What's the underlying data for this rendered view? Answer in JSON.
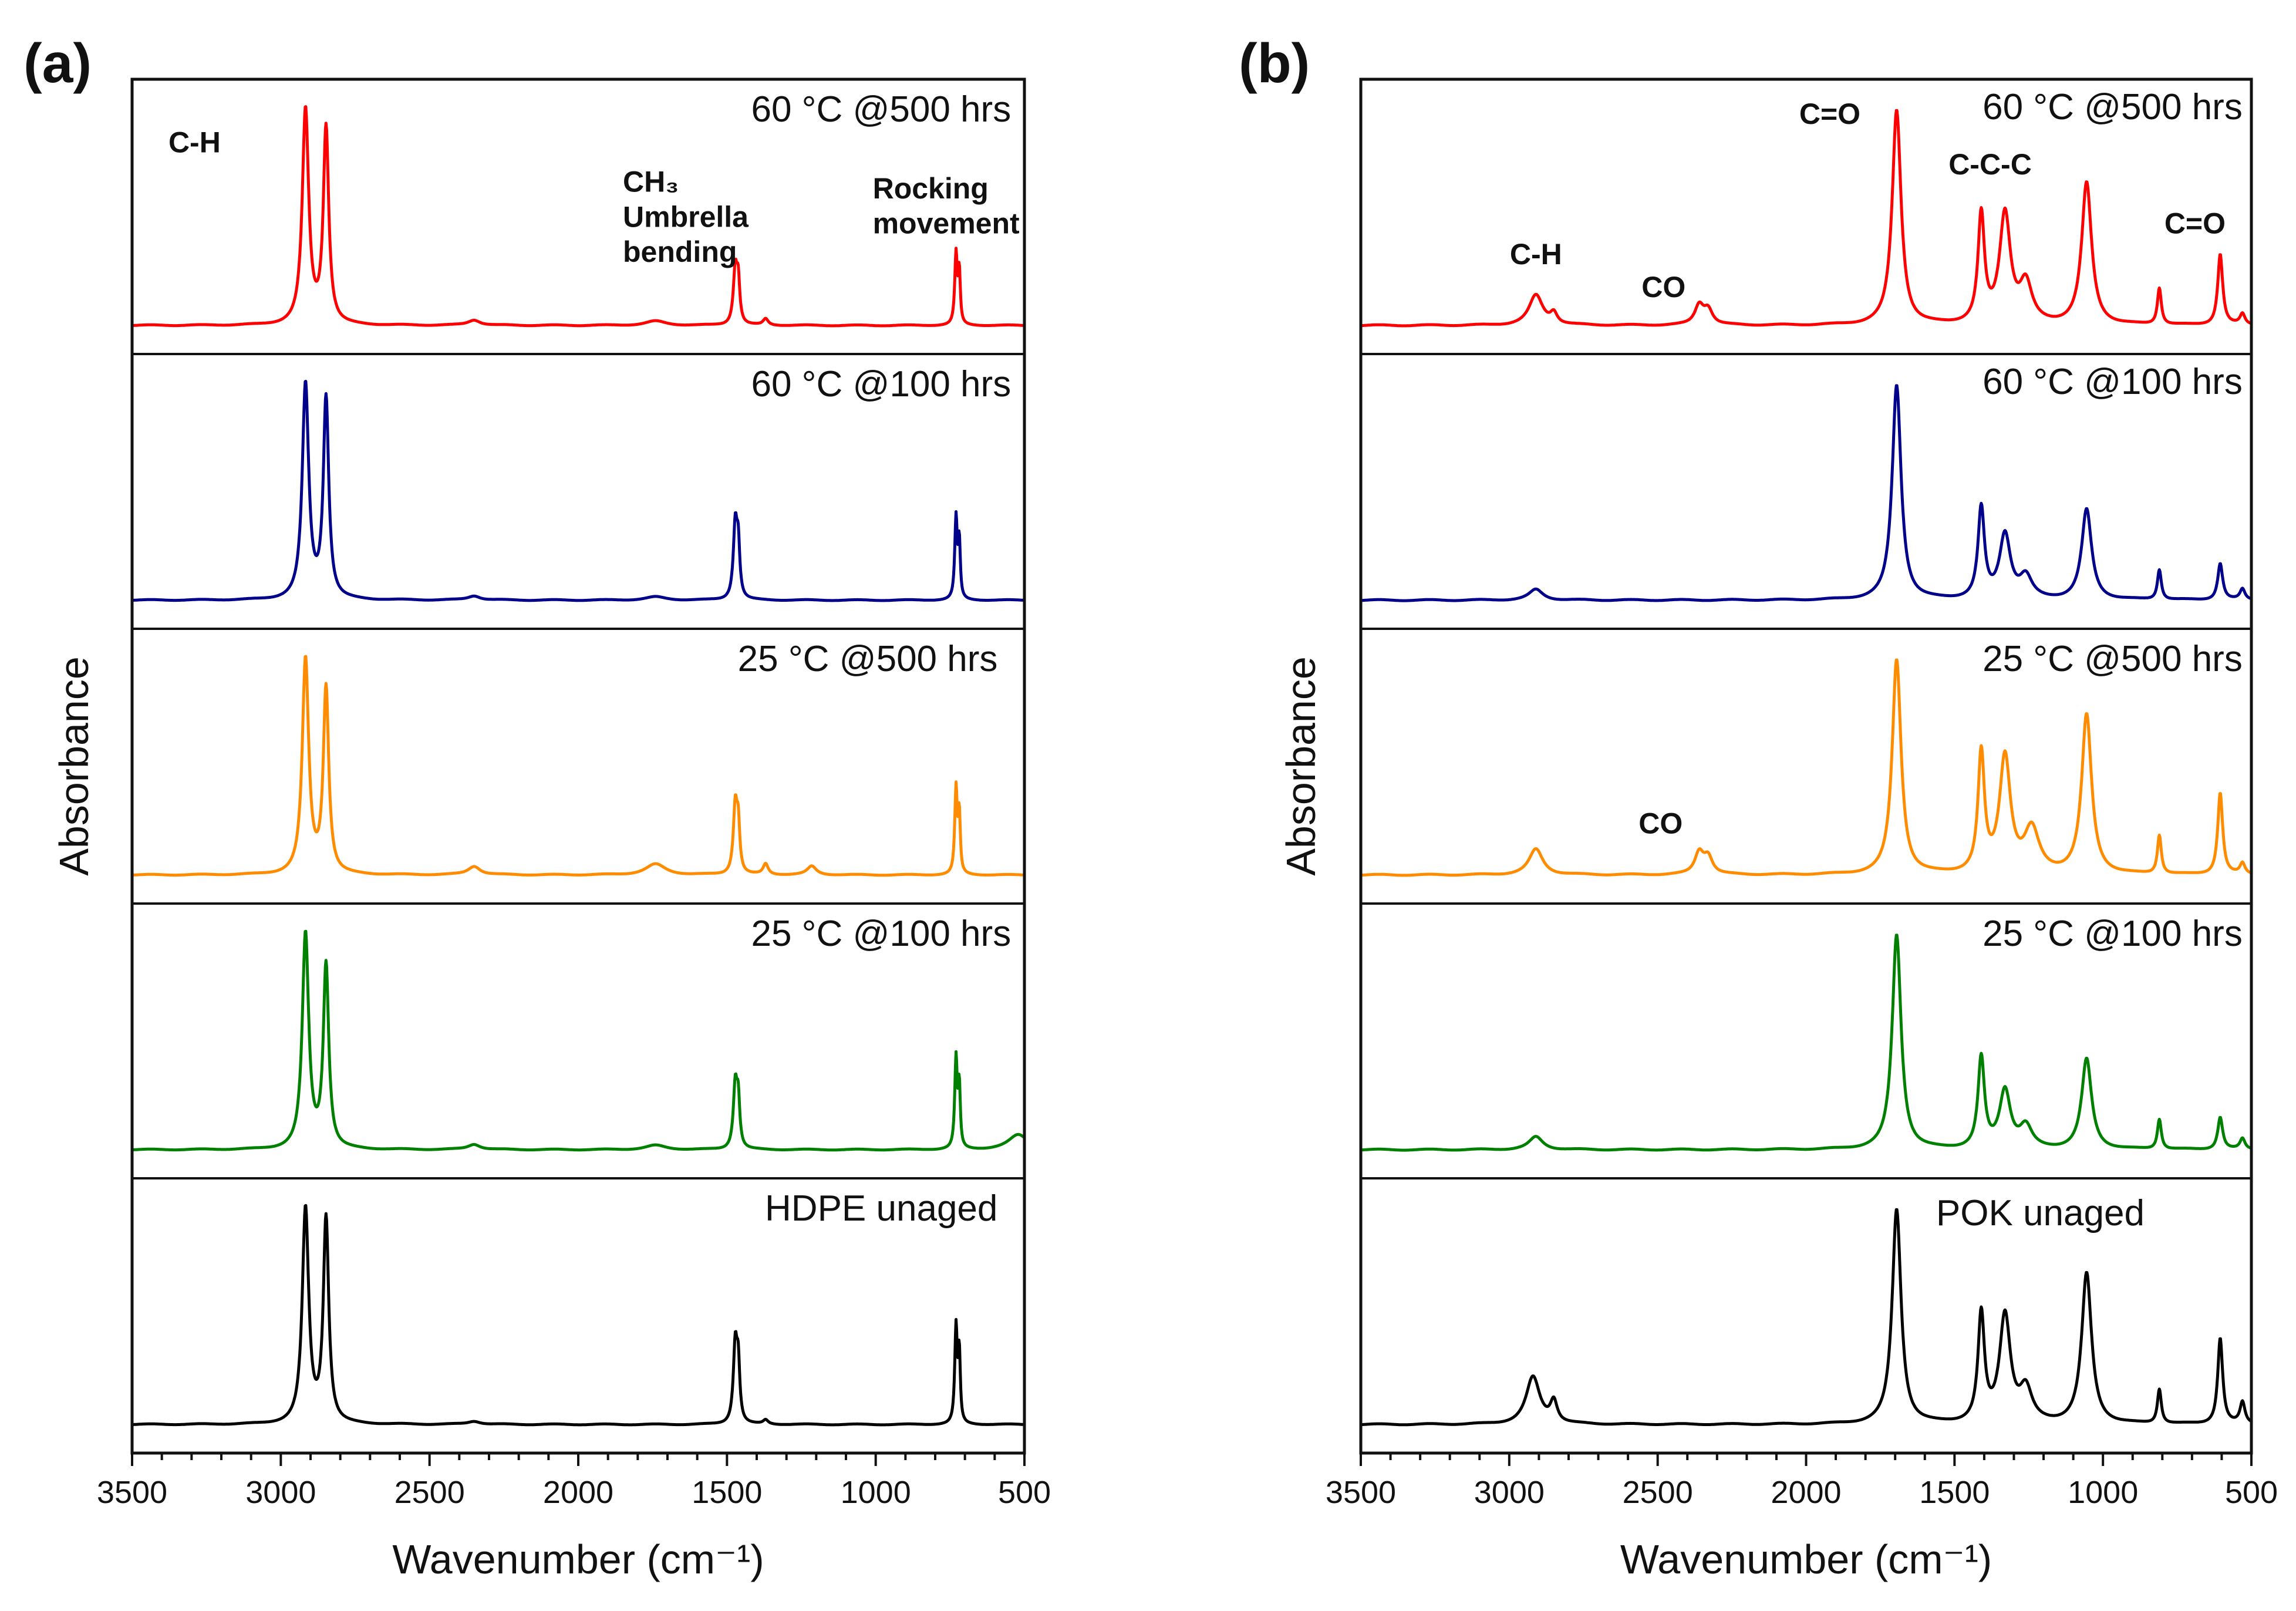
{
  "chart_data": [
    {
      "type": "line",
      "panel_label": "(a)",
      "xlabel": "Wavenumber (cm⁻¹)",
      "ylabel": "Absorbance",
      "xlim": [
        3500,
        500
      ],
      "xticks": [
        3500,
        3000,
        2500,
        2000,
        1500,
        1000,
        500
      ],
      "stacked": true,
      "series": [
        {
          "name": "60 °C @500 hrs",
          "color": "#ff0000",
          "baseline": 0.01,
          "slope": 0.004,
          "peaks": [
            [
              2917,
              1.0,
              13
            ],
            [
              2848,
              0.91,
              11
            ],
            [
              2350,
              0.025,
              25
            ],
            [
              1740,
              0.02,
              40
            ],
            [
              1472,
              0.26,
              8
            ],
            [
              1462,
              0.18,
              6
            ],
            [
              1370,
              0.03,
              10
            ],
            [
              730,
              0.33,
              5
            ],
            [
              719,
              0.24,
              4
            ]
          ],
          "annotations": [
            {
              "text": "C-H",
              "x": 3290,
              "rel_y": 0.8
            },
            {
              "text": "CH₃",
              "x": 1850,
              "rel_y": 0.62
            },
            {
              "text": "Umbrella",
              "x": 1850,
              "rel_y": 0.46
            },
            {
              "text": "bending",
              "x": 1850,
              "rel_y": 0.3
            },
            {
              "text": "Rocking",
              "x": 1010,
              "rel_y": 0.59
            },
            {
              "text": "movement",
              "x": 1010,
              "rel_y": 0.43
            }
          ]
        },
        {
          "name": "60 °C @100 hrs",
          "color": "#00008b",
          "baseline": 0.01,
          "slope": 0.004,
          "peaks": [
            [
              2917,
              1.0,
              13
            ],
            [
              2848,
              0.93,
              11
            ],
            [
              2350,
              0.02,
              25
            ],
            [
              1740,
              0.015,
              40
            ],
            [
              1472,
              0.35,
              8
            ],
            [
              1462,
              0.22,
              6
            ],
            [
              730,
              0.38,
              5
            ],
            [
              719,
              0.26,
              4
            ]
          ],
          "annotations": []
        },
        {
          "name": "25 °C @500 hrs",
          "color": "#ff8c00",
          "baseline": 0.01,
          "slope": 0.004,
          "peaks": [
            [
              2917,
              1.0,
              13
            ],
            [
              2848,
              0.86,
              11
            ],
            [
              2350,
              0.04,
              25
            ],
            [
              1740,
              0.05,
              40
            ],
            [
              1472,
              0.32,
              8
            ],
            [
              1462,
              0.2,
              6
            ],
            [
              1370,
              0.05,
              10
            ],
            [
              1215,
              0.04,
              18
            ],
            [
              730,
              0.4,
              5
            ],
            [
              719,
              0.27,
              4
            ]
          ],
          "annotations": []
        },
        {
          "name": "25 °C @100 hrs",
          "color": "#008000",
          "baseline": 0.01,
          "slope": 0.004,
          "peaks": [
            [
              2917,
              1.0,
              13
            ],
            [
              2848,
              0.85,
              11
            ],
            [
              2350,
              0.025,
              25
            ],
            [
              1740,
              0.02,
              40
            ],
            [
              1472,
              0.3,
              8
            ],
            [
              1462,
              0.2,
              6
            ],
            [
              730,
              0.42,
              5
            ],
            [
              719,
              0.28,
              4
            ],
            [
              520,
              0.07,
              40
            ]
          ],
          "annotations": []
        },
        {
          "name": "HDPE unaged",
          "color": "#000000",
          "baseline": 0.01,
          "slope": 0.004,
          "peaks": [
            [
              2917,
              1.0,
              13
            ],
            [
              2848,
              0.95,
              11
            ],
            [
              2350,
              0.015,
              25
            ],
            [
              1472,
              0.37,
              8
            ],
            [
              1462,
              0.24,
              6
            ],
            [
              1370,
              0.02,
              10
            ],
            [
              730,
              0.45,
              5
            ],
            [
              719,
              0.32,
              4
            ]
          ],
          "annotations": []
        }
      ]
    },
    {
      "type": "line",
      "panel_label": "(b)",
      "xlabel": "Wavenumber (cm⁻¹)",
      "ylabel": "Absorbance",
      "xlim": [
        3500,
        500
      ],
      "xticks": [
        3500,
        3000,
        2500,
        2000,
        1500,
        1000,
        500
      ],
      "stacked": true,
      "series": [
        {
          "name": "60 °C @500 hrs",
          "color": "#ff0000",
          "baseline": 0.01,
          "slope": 0.005,
          "peaks": [
            [
              2910,
              0.14,
              28
            ],
            [
              2850,
              0.05,
              14
            ],
            [
              2360,
              0.09,
              18
            ],
            [
              2330,
              0.07,
              18
            ],
            [
              1695,
              1.0,
              18
            ],
            [
              1410,
              0.5,
              13
            ],
            [
              1330,
              0.51,
              22
            ],
            [
              1260,
              0.18,
              25
            ],
            [
              1055,
              0.66,
              20
            ],
            [
              810,
              0.17,
              8
            ],
            [
              605,
              0.33,
              10
            ],
            [
              530,
              0.05,
              10
            ]
          ],
          "annotations": [
            {
              "text": "C-H",
              "x": 2910,
              "rel_y": 0.29
            },
            {
              "text": "CO",
              "x": 2480,
              "rel_y": 0.14
            },
            {
              "text": "C=O",
              "x": 1920,
              "rel_y": 0.93
            },
            {
              "text": "C-C-C",
              "x": 1380,
              "rel_y": 0.7
            },
            {
              "text": "C=O",
              "x": 690,
              "rel_y": 0.43
            }
          ]
        },
        {
          "name": "60 °C @100 hrs",
          "color": "#00008b",
          "baseline": 0.01,
          "slope": 0.005,
          "peaks": [
            [
              2910,
              0.05,
              28
            ],
            [
              1695,
              1.0,
              18
            ],
            [
              1410,
              0.42,
              13
            ],
            [
              1330,
              0.3,
              22
            ],
            [
              1260,
              0.1,
              25
            ],
            [
              1055,
              0.42,
              20
            ],
            [
              810,
              0.14,
              8
            ],
            [
              605,
              0.17,
              10
            ],
            [
              530,
              0.05,
              10
            ]
          ],
          "annotations": []
        },
        {
          "name": "25 °C @500 hrs",
          "color": "#ff8c00",
          "baseline": 0.01,
          "slope": 0.005,
          "peaks": [
            [
              2910,
              0.12,
              28
            ],
            [
              2360,
              0.1,
              18
            ],
            [
              2330,
              0.08,
              18
            ],
            [
              1695,
              1.0,
              18
            ],
            [
              1410,
              0.55,
              13
            ],
            [
              1330,
              0.54,
              22
            ],
            [
              1240,
              0.2,
              30
            ],
            [
              1055,
              0.74,
              20
            ],
            [
              810,
              0.18,
              8
            ],
            [
              605,
              0.38,
              10
            ],
            [
              530,
              0.05,
              10
            ]
          ],
          "annotations": [
            {
              "text": "CO",
              "x": 2490,
              "rel_y": 0.2
            }
          ]
        },
        {
          "name": "25 °C @100 hrs",
          "color": "#008000",
          "baseline": 0.01,
          "slope": 0.005,
          "peaks": [
            [
              2910,
              0.06,
              28
            ],
            [
              1695,
              1.0,
              18
            ],
            [
              1410,
              0.42,
              13
            ],
            [
              1330,
              0.27,
              22
            ],
            [
              1260,
              0.1,
              25
            ],
            [
              1055,
              0.42,
              20
            ],
            [
              810,
              0.14,
              8
            ],
            [
              605,
              0.15,
              10
            ],
            [
              530,
              0.05,
              10
            ]
          ],
          "annotations": []
        },
        {
          "name": "POK unaged",
          "color": "#000000",
          "baseline": 0.01,
          "slope": 0.005,
          "peaks": [
            [
              2920,
              0.22,
              28
            ],
            [
              2850,
              0.1,
              14
            ],
            [
              1695,
              1.0,
              18
            ],
            [
              1410,
              0.5,
              13
            ],
            [
              1330,
              0.5,
              22
            ],
            [
              1260,
              0.15,
              25
            ],
            [
              1055,
              0.7,
              20
            ],
            [
              810,
              0.16,
              8
            ],
            [
              605,
              0.4,
              10
            ],
            [
              530,
              0.1,
              10
            ]
          ],
          "annotations": []
        }
      ]
    }
  ]
}
